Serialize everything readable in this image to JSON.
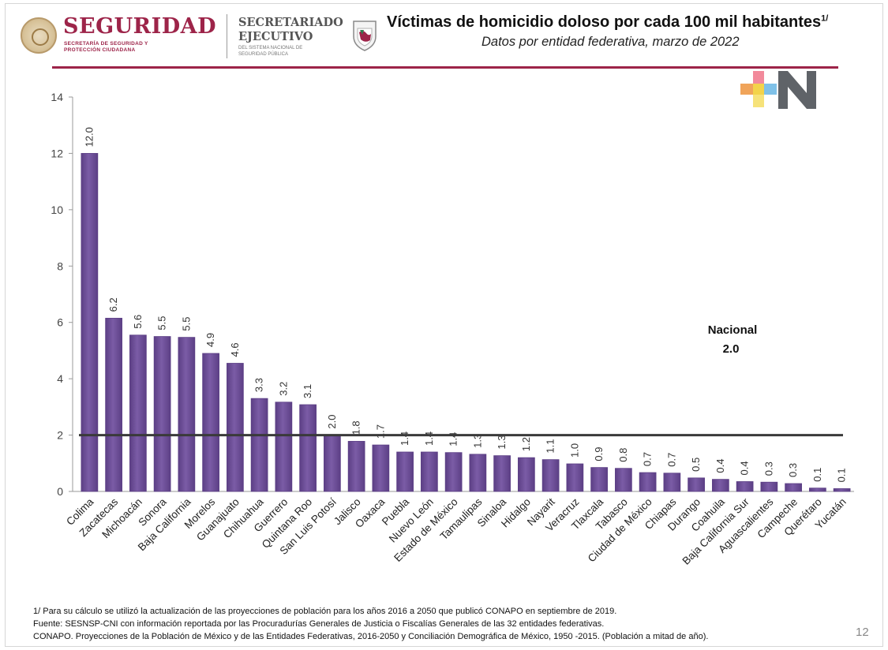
{
  "header": {
    "logo_title": "SEGURIDAD",
    "logo_subtitle": "SECRETARÍA DE SEGURIDAD Y PROTECCIÓN CIUDADANA",
    "secretariado_title": "SECRETARIADO EJECUTIVO",
    "secretariado_subtitle": "DEL SISTEMA NACIONAL DE SEGURIDAD PÚBLICA",
    "title": "Víctimas de homicidio doloso por cada 100 mil habitantes",
    "title_note": "1/",
    "subtitle": "Datos por entidad federativa, marzo de 2022"
  },
  "colors": {
    "brand": "#9d2449",
    "bar": "#7b5ca6",
    "bar_dark": "#5c3f85",
    "national_line": "#3a3a3a"
  },
  "chart_data": {
    "type": "bar",
    "categories": [
      "Colima",
      "Zacatecas",
      "Michoacán",
      "Sonora",
      "Baja California",
      "Morelos",
      "Guanajuato",
      "Chihuahua",
      "Guerrero",
      "Quintana Roo",
      "San Luis Potosí",
      "Jalisco",
      "Oaxaca",
      "Puebla",
      "Nuevo León",
      "Estado de México",
      "Tamaulipas",
      "Sinaloa",
      "Hidalgo",
      "Nayarit",
      "Veracruz",
      "Tlaxcala",
      "Tabasco",
      "Ciudad de México",
      "Chiapas",
      "Durango",
      "Coahuila",
      "Baja California Sur",
      "Aguascalientes",
      "Campeche",
      "Querétaro",
      "Yucatán"
    ],
    "values": [
      12.0,
      6.15,
      5.55,
      5.5,
      5.47,
      4.9,
      4.55,
      3.3,
      3.17,
      3.08,
      2.0,
      1.78,
      1.65,
      1.4,
      1.4,
      1.38,
      1.32,
      1.27,
      1.2,
      1.13,
      0.98,
      0.85,
      0.82,
      0.67,
      0.65,
      0.48,
      0.43,
      0.35,
      0.33,
      0.28,
      0.12,
      0.1
    ],
    "data_labels": [
      "12.0",
      "6.2",
      "5.6",
      "5.5",
      "5.5",
      "4.9",
      "4.6",
      "3.3",
      "3.2",
      "3.1",
      "2.0",
      "1.8",
      "1.7",
      "1.4",
      "1.4",
      "1.4",
      "1.3",
      "1.3",
      "1.2",
      "1.1",
      "1.0",
      "0.9",
      "0.8",
      "0.7",
      "0.7",
      "0.5",
      "0.4",
      "0.4",
      "0.3",
      "0.3",
      "0.1",
      "0.1"
    ],
    "yticks": [
      0,
      2,
      4,
      6,
      8,
      10,
      12,
      14
    ],
    "ylim": [
      0,
      14
    ],
    "reference_line": {
      "value": 2.0,
      "label": "Nacional",
      "value_label": "2.0"
    },
    "grid": false,
    "legend": "none"
  },
  "footnotes": [
    "1/ Para su cálculo se utilizó la actualización de las proyecciones de población para los años 2016 a 2050 que publicó CONAPO en septiembre de 2019.",
    "Fuente: SESNSP-CNI con información reportada por las Procuradurías Generales de Justicia o Fiscalías Generales de las 32 entidades federativas.",
    "CONAPO. Proyecciones de la Población de México y de las Entidades Federativas, 2016-2050 y Conciliación Demográfica de México, 1950 -2015. (Población a mitad de año)."
  ],
  "page_number": "12"
}
